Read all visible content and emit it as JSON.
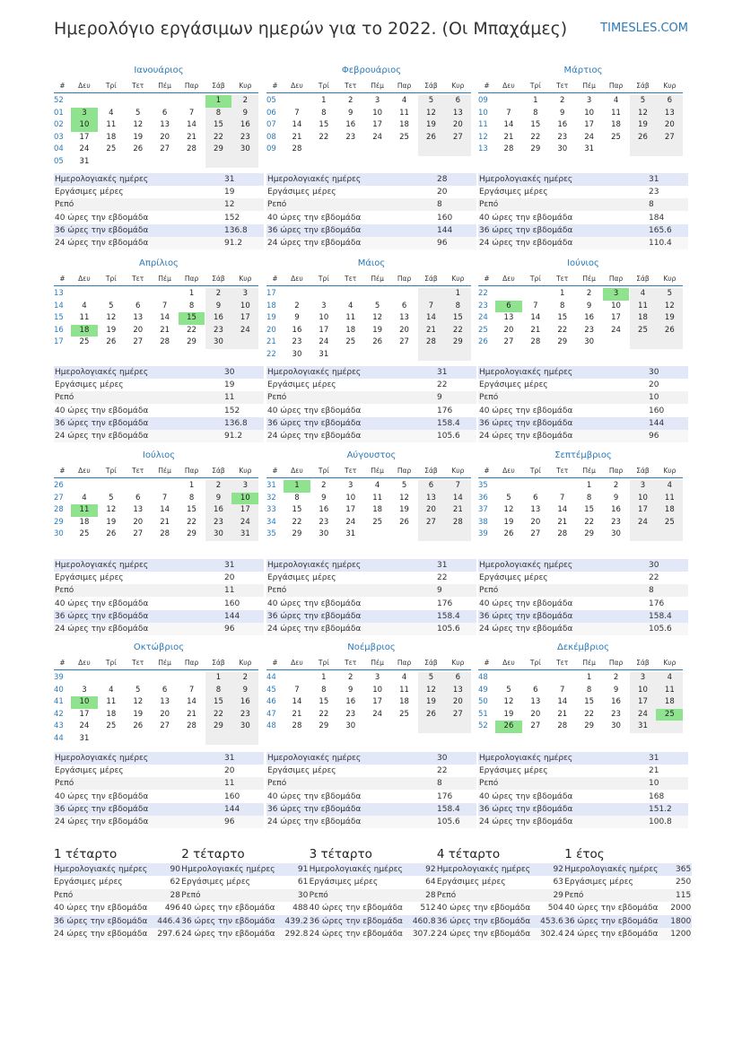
{
  "title": "Ημερολόγιο εργάσιμων ημερών για το 2022. (Οι Μπαχάμες)",
  "site": "TIMESLES.COM",
  "weekdays": [
    "#",
    "Δευ",
    "Τρί",
    "Τετ",
    "Πέμ",
    "Παρ",
    "Σάβ",
    "Κυρ"
  ],
  "stat_labels": [
    "Ημερολογιακές ημέρες",
    "Εργάσιμες μέρες",
    "Ρεπό",
    "40 ώρες την εβδομάδα",
    "36 ώρες την εβδομάδα",
    "24 ώρες την εβδομάδα"
  ],
  "months": [
    {
      "name": "Ιανουάριος",
      "holidays": [
        1,
        3,
        10
      ],
      "stats": [
        31,
        19,
        12,
        152,
        136.8,
        91.2
      ],
      "weeks": [
        {
          "week": "52",
          "days": [
            null,
            null,
            null,
            null,
            null,
            1,
            2
          ]
        },
        {
          "week": "01",
          "days": [
            3,
            4,
            5,
            6,
            7,
            8,
            9
          ]
        },
        {
          "week": "02",
          "days": [
            10,
            11,
            12,
            13,
            14,
            15,
            16
          ]
        },
        {
          "week": "03",
          "days": [
            17,
            18,
            19,
            20,
            21,
            22,
            23
          ]
        },
        {
          "week": "04",
          "days": [
            24,
            25,
            26,
            27,
            28,
            29,
            30
          ]
        },
        {
          "week": "05",
          "days": [
            31,
            null,
            null,
            null,
            null,
            null,
            null
          ]
        }
      ]
    },
    {
      "name": "Φεβρουάριος",
      "holidays": [],
      "stats": [
        28,
        20,
        8,
        160,
        144,
        96
      ],
      "weeks": [
        {
          "week": "05",
          "days": [
            null,
            1,
            2,
            3,
            4,
            5,
            6
          ]
        },
        {
          "week": "06",
          "days": [
            7,
            8,
            9,
            10,
            11,
            12,
            13
          ]
        },
        {
          "week": "07",
          "days": [
            14,
            15,
            16,
            17,
            18,
            19,
            20
          ]
        },
        {
          "week": "08",
          "days": [
            21,
            22,
            23,
            24,
            25,
            26,
            27
          ]
        },
        {
          "week": "09",
          "days": [
            28,
            null,
            null,
            null,
            null,
            null,
            null
          ]
        }
      ]
    },
    {
      "name": "Μάρτιος",
      "holidays": [],
      "stats": [
        31,
        23,
        8,
        184,
        165.6,
        110.4
      ],
      "weeks": [
        {
          "week": "09",
          "days": [
            null,
            1,
            2,
            3,
            4,
            5,
            6
          ]
        },
        {
          "week": "10",
          "days": [
            7,
            8,
            9,
            10,
            11,
            12,
            13
          ]
        },
        {
          "week": "11",
          "days": [
            14,
            15,
            16,
            17,
            18,
            19,
            20
          ]
        },
        {
          "week": "12",
          "days": [
            21,
            22,
            23,
            24,
            25,
            26,
            27
          ]
        },
        {
          "week": "13",
          "days": [
            28,
            29,
            30,
            31,
            null,
            null,
            null
          ]
        }
      ]
    },
    {
      "name": "Απρίλιος",
      "holidays": [
        15,
        18
      ],
      "stats": [
        30,
        19,
        11,
        152,
        136.8,
        91.2
      ],
      "weeks": [
        {
          "week": "13",
          "days": [
            null,
            null,
            null,
            null,
            1,
            2,
            3
          ]
        },
        {
          "week": "14",
          "days": [
            4,
            5,
            6,
            7,
            8,
            9,
            10
          ]
        },
        {
          "week": "15",
          "days": [
            11,
            12,
            13,
            14,
            15,
            16,
            17
          ]
        },
        {
          "week": "16",
          "days": [
            18,
            19,
            20,
            21,
            22,
            23,
            24
          ]
        },
        {
          "week": "17",
          "days": [
            25,
            26,
            27,
            28,
            29,
            30,
            null
          ]
        }
      ]
    },
    {
      "name": "Μάιος",
      "holidays": [],
      "stats": [
        31,
        22,
        9,
        176,
        158.4,
        105.6
      ],
      "weeks": [
        {
          "week": "17",
          "days": [
            null,
            null,
            null,
            null,
            null,
            null,
            1
          ]
        },
        {
          "week": "18",
          "days": [
            2,
            3,
            4,
            5,
            6,
            7,
            8
          ]
        },
        {
          "week": "19",
          "days": [
            9,
            10,
            11,
            12,
            13,
            14,
            15
          ]
        },
        {
          "week": "20",
          "days": [
            16,
            17,
            18,
            19,
            20,
            21,
            22
          ]
        },
        {
          "week": "21",
          "days": [
            23,
            24,
            25,
            26,
            27,
            28,
            29
          ]
        },
        {
          "week": "22",
          "days": [
            30,
            31,
            null,
            null,
            null,
            null,
            null
          ]
        }
      ]
    },
    {
      "name": "Ιούνιος",
      "holidays": [
        3,
        6
      ],
      "stats": [
        30,
        20,
        10,
        160,
        144,
        96
      ],
      "weeks": [
        {
          "week": "22",
          "days": [
            null,
            null,
            1,
            2,
            3,
            4,
            5
          ]
        },
        {
          "week": "23",
          "days": [
            6,
            7,
            8,
            9,
            10,
            11,
            12
          ]
        },
        {
          "week": "24",
          "days": [
            13,
            14,
            15,
            16,
            17,
            18,
            19
          ]
        },
        {
          "week": "25",
          "days": [
            20,
            21,
            22,
            23,
            24,
            25,
            26
          ]
        },
        {
          "week": "26",
          "days": [
            27,
            28,
            29,
            30,
            null,
            null,
            null
          ]
        }
      ]
    },
    {
      "name": "Ιούλιος",
      "holidays": [
        10,
        11
      ],
      "stats": [
        31,
        20,
        11,
        160,
        144,
        96
      ],
      "weeks": [
        {
          "week": "26",
          "days": [
            null,
            null,
            null,
            null,
            1,
            2,
            3
          ]
        },
        {
          "week": "27",
          "days": [
            4,
            5,
            6,
            7,
            8,
            9,
            10
          ]
        },
        {
          "week": "28",
          "days": [
            11,
            12,
            13,
            14,
            15,
            16,
            17
          ]
        },
        {
          "week": "29",
          "days": [
            18,
            19,
            20,
            21,
            22,
            23,
            24
          ]
        },
        {
          "week": "30",
          "days": [
            25,
            26,
            27,
            28,
            29,
            30,
            31
          ]
        }
      ]
    },
    {
      "name": "Αύγουστος",
      "holidays": [
        1
      ],
      "stats": [
        31,
        22,
        9,
        176,
        158.4,
        105.6
      ],
      "weeks": [
        {
          "week": "31",
          "days": [
            1,
            2,
            3,
            4,
            5,
            6,
            7
          ]
        },
        {
          "week": "32",
          "days": [
            8,
            9,
            10,
            11,
            12,
            13,
            14
          ]
        },
        {
          "week": "33",
          "days": [
            15,
            16,
            17,
            18,
            19,
            20,
            21
          ]
        },
        {
          "week": "34",
          "days": [
            22,
            23,
            24,
            25,
            26,
            27,
            28
          ]
        },
        {
          "week": "35",
          "days": [
            29,
            30,
            31,
            null,
            null,
            null,
            null
          ]
        }
      ]
    },
    {
      "name": "Σεπτέμβριος",
      "holidays": [],
      "stats": [
        30,
        22,
        8,
        176,
        158.4,
        105.6
      ],
      "weeks": [
        {
          "week": "35",
          "days": [
            null,
            null,
            null,
            1,
            2,
            3,
            4
          ]
        },
        {
          "week": "36",
          "days": [
            5,
            6,
            7,
            8,
            9,
            10,
            11
          ]
        },
        {
          "week": "37",
          "days": [
            12,
            13,
            14,
            15,
            16,
            17,
            18
          ]
        },
        {
          "week": "38",
          "days": [
            19,
            20,
            21,
            22,
            23,
            24,
            25
          ]
        },
        {
          "week": "39",
          "days": [
            26,
            27,
            28,
            29,
            30,
            null,
            null
          ]
        }
      ]
    },
    {
      "name": "Οκτώβριος",
      "holidays": [
        10
      ],
      "stats": [
        31,
        20,
        11,
        160,
        144,
        96
      ],
      "weeks": [
        {
          "week": "39",
          "days": [
            null,
            null,
            null,
            null,
            null,
            1,
            2
          ]
        },
        {
          "week": "40",
          "days": [
            3,
            4,
            5,
            6,
            7,
            8,
            9
          ]
        },
        {
          "week": "41",
          "days": [
            10,
            11,
            12,
            13,
            14,
            15,
            16
          ]
        },
        {
          "week": "42",
          "days": [
            17,
            18,
            19,
            20,
            21,
            22,
            23
          ]
        },
        {
          "week": "43",
          "days": [
            24,
            25,
            26,
            27,
            28,
            29,
            30
          ]
        },
        {
          "week": "44",
          "days": [
            31,
            null,
            null,
            null,
            null,
            null,
            null
          ]
        }
      ]
    },
    {
      "name": "Νοέμβριος",
      "holidays": [],
      "stats": [
        30,
        22,
        8,
        176,
        158.4,
        105.6
      ],
      "weeks": [
        {
          "week": "44",
          "days": [
            null,
            1,
            2,
            3,
            4,
            5,
            6
          ]
        },
        {
          "week": "45",
          "days": [
            7,
            8,
            9,
            10,
            11,
            12,
            13
          ]
        },
        {
          "week": "46",
          "days": [
            14,
            15,
            16,
            17,
            18,
            19,
            20
          ]
        },
        {
          "week": "47",
          "days": [
            21,
            22,
            23,
            24,
            25,
            26,
            27
          ]
        },
        {
          "week": "48",
          "days": [
            28,
            29,
            30,
            null,
            null,
            null,
            null
          ]
        }
      ]
    },
    {
      "name": "Δεκέμβριος",
      "holidays": [
        25,
        26
      ],
      "stats": [
        31,
        21,
        10,
        168,
        151.2,
        100.8
      ],
      "weeks": [
        {
          "week": "48",
          "days": [
            null,
            null,
            null,
            1,
            2,
            3,
            4
          ]
        },
        {
          "week": "49",
          "days": [
            5,
            6,
            7,
            8,
            9,
            10,
            11
          ]
        },
        {
          "week": "50",
          "days": [
            12,
            13,
            14,
            15,
            16,
            17,
            18
          ]
        },
        {
          "week": "51",
          "days": [
            19,
            20,
            21,
            22,
            23,
            24,
            25
          ]
        },
        {
          "week": "52",
          "days": [
            26,
            27,
            28,
            29,
            30,
            31,
            null
          ]
        }
      ]
    }
  ],
  "summary": [
    {
      "name": "1 τέταρτο",
      "stats": [
        90,
        62,
        28,
        496,
        446.4,
        297.6
      ]
    },
    {
      "name": "2 τέταρτο",
      "stats": [
        91,
        61,
        30,
        488,
        439.2,
        292.8
      ]
    },
    {
      "name": "3 τέταρτο",
      "stats": [
        92,
        64,
        28,
        512,
        460.8,
        307.2
      ]
    },
    {
      "name": "4 τέταρτο",
      "stats": [
        92,
        63,
        29,
        504,
        453.6,
        302.4
      ]
    },
    {
      "name": "1 έτος",
      "stats": [
        365,
        250,
        115,
        2000,
        1800,
        1200
      ]
    }
  ]
}
